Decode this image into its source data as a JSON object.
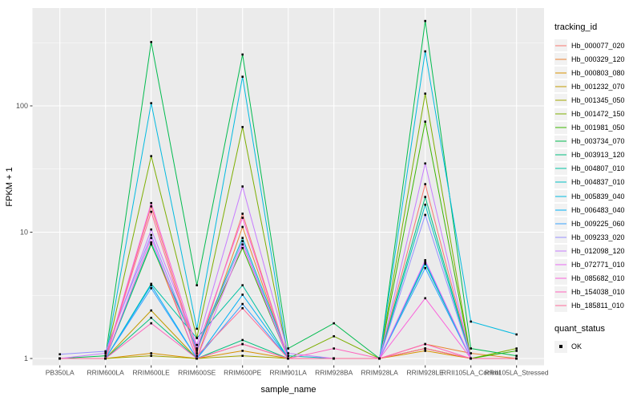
{
  "chart_data": {
    "type": "line",
    "xlabel": "sample_name",
    "ylabel": "FPKM + 1",
    "y_scale": "log10",
    "y_ticks": [
      1,
      10,
      100
    ],
    "ylim": [
      1,
      595
    ],
    "grid": true,
    "legend_position": "right",
    "panel_bg": "#EBEBEB",
    "gridline_color": "#FFFFFF",
    "point_color": "#000000",
    "point_shape": "square",
    "categories": [
      "PB350LA",
      "RRIM600LA",
      "RRIM600LE",
      "RRIM600SE",
      "RRIM600PE",
      "RRIM901LA",
      "RRIM928BA",
      "RRIM928LA",
      "RRIM928LE",
      "RRII105LA_Control",
      "RRII105LA_Stressed"
    ],
    "series": [
      {
        "name": "Hb_000077_020",
        "color": "#F8766D",
        "values": [
          1,
          1,
          16,
          1.1,
          14,
          1,
          1,
          1,
          24,
          1,
          1
        ]
      },
      {
        "name": "Hb_000329_120",
        "color": "#EA8331",
        "values": [
          1,
          1,
          8.3,
          1,
          11,
          1,
          1,
          1,
          1.3,
          1.1,
          1
        ]
      },
      {
        "name": "Hb_000803_080",
        "color": "#D89000",
        "values": [
          1,
          1,
          1.1,
          1,
          1.15,
          1,
          1,
          1,
          1.15,
          1,
          1
        ]
      },
      {
        "name": "Hb_001232_070",
        "color": "#C09B00",
        "values": [
          1,
          1,
          2.4,
          1,
          1.3,
          1,
          1,
          1,
          1.2,
          1,
          1
        ]
      },
      {
        "name": "Hb_001345_050",
        "color": "#A3A500",
        "values": [
          1,
          1,
          1.05,
          1,
          1.05,
          1,
          1,
          1,
          1.2,
          1,
          1
        ]
      },
      {
        "name": "Hb_001472_150",
        "color": "#7CAE00",
        "values": [
          1,
          1,
          40,
          1.46,
          68,
          1,
          1.5,
          1,
          125,
          1,
          1.2
        ]
      },
      {
        "name": "Hb_001981_050",
        "color": "#39B600",
        "values": [
          1,
          1,
          8,
          1.2,
          7.5,
          1,
          1,
          1,
          75,
          1,
          1.15
        ]
      },
      {
        "name": "Hb_003734_070",
        "color": "#00BB4E",
        "values": [
          1,
          1.05,
          320,
          3.8,
          255,
          1.2,
          1.9,
          1,
          470,
          1.2,
          1.05
        ]
      },
      {
        "name": "Hb_003913_120",
        "color": "#00BF7D",
        "values": [
          1,
          1,
          2.1,
          1,
          1.4,
          1,
          1,
          1,
          19,
          1,
          1
        ]
      },
      {
        "name": "Hb_004807_010",
        "color": "#00C1A3",
        "values": [
          1,
          1,
          3.9,
          1.45,
          3.8,
          1,
          1,
          1,
          5.6,
          1,
          1
        ]
      },
      {
        "name": "Hb_004837_010",
        "color": "#00BFC4",
        "values": [
          1,
          1,
          8.2,
          1.2,
          9,
          1.05,
          1,
          1,
          16.5,
          1,
          1
        ]
      },
      {
        "name": "Hb_005839_040",
        "color": "#00BAE0",
        "values": [
          1,
          1,
          105,
          1.72,
          170,
          1,
          1,
          1,
          270,
          1.96,
          1.55
        ]
      },
      {
        "name": "Hb_006483_040",
        "color": "#00B0F6",
        "values": [
          1,
          1,
          3.8,
          1,
          3.2,
          1,
          1,
          1,
          5.8,
          1,
          1
        ]
      },
      {
        "name": "Hb_009225_060",
        "color": "#35A2FF",
        "values": [
          1,
          1,
          3.6,
          1,
          2.7,
          1,
          1,
          1,
          5.2,
          1,
          1
        ]
      },
      {
        "name": "Hb_009233_020",
        "color": "#9590FF",
        "values": [
          1.08,
          1.14,
          9.5,
          1.15,
          8.5,
          1,
          1,
          1,
          13.7,
          1,
          1
        ]
      },
      {
        "name": "Hb_012098_120",
        "color": "#C77CFF",
        "values": [
          1,
          1.1,
          10.5,
          1.28,
          23,
          1.1,
          1,
          1,
          35,
          1,
          1
        ]
      },
      {
        "name": "Hb_072771_010",
        "color": "#E76BF3",
        "values": [
          1,
          1,
          9,
          1,
          8,
          1,
          1,
          1,
          6,
          1,
          1
        ]
      },
      {
        "name": "Hb_085682_010",
        "color": "#FA62DB",
        "values": [
          1,
          1,
          17,
          1.2,
          13,
          1,
          1,
          1,
          3,
          1,
          1
        ]
      },
      {
        "name": "Hb_154038_010",
        "color": "#FF62BC",
        "values": [
          1,
          1,
          1.9,
          1,
          1.3,
          1,
          1.2,
          1,
          1.3,
          1,
          1
        ]
      },
      {
        "name": "Hb_185811_010",
        "color": "#FF6A98",
        "values": [
          1,
          1,
          14.5,
          1.05,
          2.5,
          1,
          1,
          1,
          1.2,
          1,
          1
        ]
      }
    ]
  },
  "legend": {
    "tracking_title": "tracking_id",
    "quant_title": "quant_status",
    "quant_items": [
      {
        "label": "OK"
      }
    ]
  }
}
